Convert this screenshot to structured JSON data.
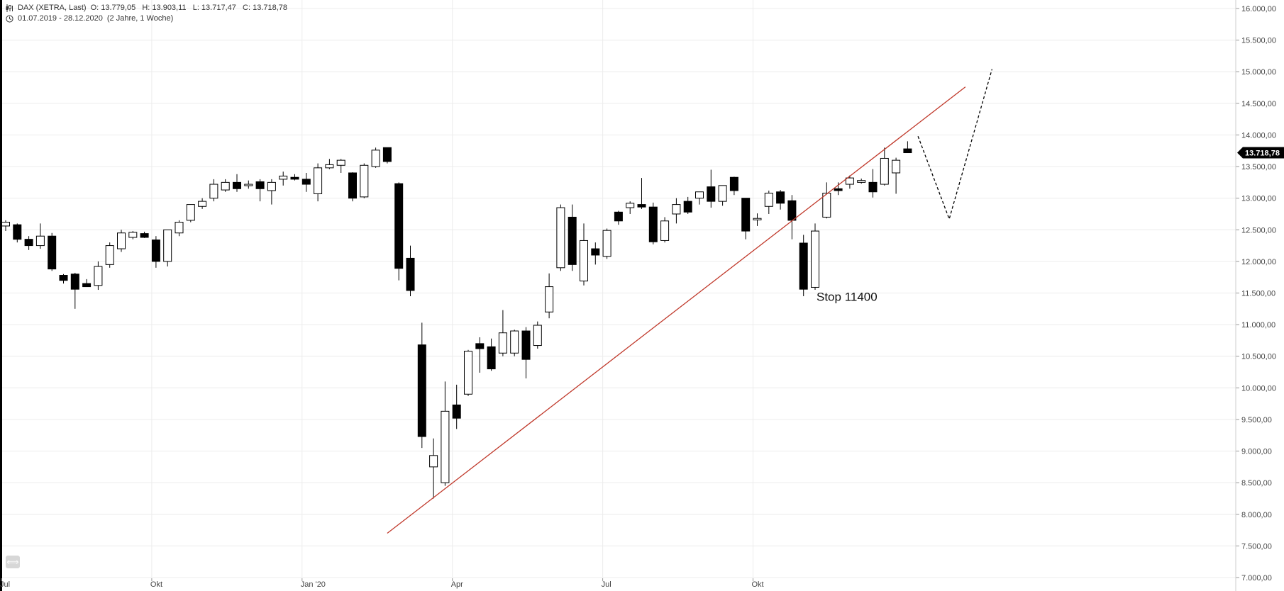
{
  "header": {
    "symbol": "DAX (XETRA, Last)",
    "ohlc": "O: 13.779,05   H: 13.903,11   L: 13.717,47   C: 13.718,78",
    "range": "01.07.2019 - 28.12.2020",
    "period": "(2 Jahre, 1 Woche)",
    "symbol_icon": "candlestick-icon",
    "range_icon": "clock-icon"
  },
  "colors": {
    "up_fill": "#ffffff",
    "down_fill": "#000000",
    "wick": "#000000",
    "trendline": "#c0392b",
    "projection": "#000000",
    "grid": "#ececec",
    "last_label_bg": "#000000"
  },
  "chart_data": {
    "type": "candlestick",
    "instrument": "DAX (XETRA, Last)",
    "interval": "weekly",
    "ylim": [
      7000,
      16000
    ],
    "yticks": [
      7000,
      7500,
      8000,
      8500,
      9000,
      9500,
      10000,
      10500,
      11000,
      11500,
      12000,
      12500,
      13000,
      13500,
      14000,
      14500,
      15000,
      15500,
      16000
    ],
    "ytick_labels": [
      "7.000,00",
      "7.500,00",
      "8.000,00",
      "8.500,00",
      "9.000,00",
      "9.500,00",
      "10.000,00",
      "10.500,00",
      "11.000,00",
      "11.500,00",
      "12.000,00",
      "12.500,00",
      "13.000,00",
      "13.500,00",
      "14.000,00",
      "14.500,00",
      "15.000,00",
      "15.500,00",
      "16.000,00"
    ],
    "xlim_weeks": [
      0,
      86
    ],
    "xticks": [
      {
        "label": "Jul",
        "week": 0
      },
      {
        "label": "Okt",
        "week": 13
      },
      {
        "label": "Jan '20",
        "week": 26
      },
      {
        "label": "Apr",
        "week": 39
      },
      {
        "label": "Jul",
        "week": 52
      },
      {
        "label": "Okt",
        "week": 65
      }
    ],
    "candles": [
      {
        "week": 0,
        "o": 12560,
        "h": 12650,
        "l": 12480,
        "c": 12620
      },
      {
        "week": 1,
        "o": 12580,
        "h": 12600,
        "l": 12300,
        "c": 12350
      },
      {
        "week": 2,
        "o": 12350,
        "h": 12400,
        "l": 12180,
        "c": 12250
      },
      {
        "week": 3,
        "o": 12250,
        "h": 12600,
        "l": 12200,
        "c": 12400
      },
      {
        "week": 4,
        "o": 12400,
        "h": 12450,
        "l": 11850,
        "c": 11880
      },
      {
        "week": 5,
        "o": 11780,
        "h": 11800,
        "l": 11650,
        "c": 11700
      },
      {
        "week": 6,
        "o": 11800,
        "h": 11820,
        "l": 11250,
        "c": 11560
      },
      {
        "week": 7,
        "o": 11650,
        "h": 11720,
        "l": 11600,
        "c": 11600
      },
      {
        "week": 8,
        "o": 11620,
        "h": 12000,
        "l": 11550,
        "c": 11920
      },
      {
        "week": 9,
        "o": 11950,
        "h": 12300,
        "l": 11900,
        "c": 12250
      },
      {
        "week": 10,
        "o": 12200,
        "h": 12500,
        "l": 12150,
        "c": 12450
      },
      {
        "week": 11,
        "o": 12380,
        "h": 12480,
        "l": 12350,
        "c": 12460
      },
      {
        "week": 12,
        "o": 12440,
        "h": 12470,
        "l": 12370,
        "c": 12380
      },
      {
        "week": 13,
        "o": 12340,
        "h": 12400,
        "l": 11900,
        "c": 12000
      },
      {
        "week": 14,
        "o": 12000,
        "h": 12500,
        "l": 11920,
        "c": 12500
      },
      {
        "week": 15,
        "o": 12450,
        "h": 12650,
        "l": 12400,
        "c": 12620
      },
      {
        "week": 16,
        "o": 12650,
        "h": 12900,
        "l": 12620,
        "c": 12900
      },
      {
        "week": 17,
        "o": 12870,
        "h": 13000,
        "l": 12830,
        "c": 12950
      },
      {
        "week": 18,
        "o": 13000,
        "h": 13300,
        "l": 12950,
        "c": 13220
      },
      {
        "week": 19,
        "o": 13130,
        "h": 13300,
        "l": 13100,
        "c": 13250
      },
      {
        "week": 20,
        "o": 13250,
        "h": 13380,
        "l": 13100,
        "c": 13150
      },
      {
        "week": 21,
        "o": 13200,
        "h": 13280,
        "l": 13150,
        "c": 13220
      },
      {
        "week": 22,
        "o": 13260,
        "h": 13300,
        "l": 12950,
        "c": 13150
      },
      {
        "week": 23,
        "o": 13120,
        "h": 13300,
        "l": 12900,
        "c": 13250
      },
      {
        "week": 24,
        "o": 13300,
        "h": 13420,
        "l": 13200,
        "c": 13350
      },
      {
        "week": 25,
        "o": 13330,
        "h": 13380,
        "l": 13280,
        "c": 13300
      },
      {
        "week": 26,
        "o": 13300,
        "h": 13400,
        "l": 13100,
        "c": 13220
      },
      {
        "week": 27,
        "o": 13070,
        "h": 13550,
        "l": 12950,
        "c": 13480
      },
      {
        "week": 28,
        "o": 13480,
        "h": 13620,
        "l": 13460,
        "c": 13530
      },
      {
        "week": 29,
        "o": 13520,
        "h": 13620,
        "l": 13400,
        "c": 13600
      },
      {
        "week": 30,
        "o": 13400,
        "h": 13410,
        "l": 12950,
        "c": 13000
      },
      {
        "week": 31,
        "o": 13020,
        "h": 13550,
        "l": 13000,
        "c": 13520
      },
      {
        "week": 32,
        "o": 13500,
        "h": 13800,
        "l": 13480,
        "c": 13760
      },
      {
        "week": 33,
        "o": 13800,
        "h": 13800,
        "l": 13550,
        "c": 13580
      },
      {
        "week": 34,
        "o": 13230,
        "h": 13250,
        "l": 11700,
        "c": 11890
      },
      {
        "week": 35,
        "o": 12050,
        "h": 12250,
        "l": 11450,
        "c": 11540
      },
      {
        "week": 36,
        "o": 10680,
        "h": 11030,
        "l": 9050,
        "c": 9230
      },
      {
        "week": 37,
        "o": 8750,
        "h": 9200,
        "l": 8250,
        "c": 8930
      },
      {
        "week": 38,
        "o": 8500,
        "h": 10100,
        "l": 8450,
        "c": 9630
      },
      {
        "week": 39,
        "o": 9730,
        "h": 10050,
        "l": 9350,
        "c": 9520
      },
      {
        "week": 40,
        "o": 9900,
        "h": 10600,
        "l": 9870,
        "c": 10580
      },
      {
        "week": 41,
        "o": 10700,
        "h": 10800,
        "l": 10240,
        "c": 10620
      },
      {
        "week": 42,
        "o": 10650,
        "h": 10780,
        "l": 10270,
        "c": 10300
      },
      {
        "week": 43,
        "o": 10550,
        "h": 11230,
        "l": 10500,
        "c": 10870
      },
      {
        "week": 44,
        "o": 10550,
        "h": 10920,
        "l": 10500,
        "c": 10900
      },
      {
        "week": 45,
        "o": 10900,
        "h": 10960,
        "l": 10150,
        "c": 10450
      },
      {
        "week": 46,
        "o": 10670,
        "h": 11050,
        "l": 10620,
        "c": 10990
      },
      {
        "week": 47,
        "o": 11200,
        "h": 11810,
        "l": 11100,
        "c": 11600
      },
      {
        "week": 48,
        "o": 11900,
        "h": 12900,
        "l": 11850,
        "c": 12850
      },
      {
        "week": 49,
        "o": 12700,
        "h": 12900,
        "l": 11850,
        "c": 11950
      },
      {
        "week": 50,
        "o": 11690,
        "h": 12600,
        "l": 11620,
        "c": 12330
      },
      {
        "week": 51,
        "o": 12200,
        "h": 12300,
        "l": 11950,
        "c": 12100
      },
      {
        "week": 52,
        "o": 12080,
        "h": 12520,
        "l": 12040,
        "c": 12490
      },
      {
        "week": 53,
        "o": 12780,
        "h": 12800,
        "l": 12580,
        "c": 12640
      },
      {
        "week": 54,
        "o": 12850,
        "h": 12950,
        "l": 12750,
        "c": 12920
      },
      {
        "week": 55,
        "o": 12900,
        "h": 13320,
        "l": 12830,
        "c": 12860
      },
      {
        "week": 56,
        "o": 12860,
        "h": 12930,
        "l": 12270,
        "c": 12310
      },
      {
        "week": 57,
        "o": 12330,
        "h": 12700,
        "l": 12300,
        "c": 12640
      },
      {
        "week": 58,
        "o": 12750,
        "h": 13000,
        "l": 12600,
        "c": 12900
      },
      {
        "week": 59,
        "o": 12950,
        "h": 13020,
        "l": 12750,
        "c": 12780
      },
      {
        "week": 60,
        "o": 13000,
        "h": 13100,
        "l": 12900,
        "c": 13100
      },
      {
        "week": 61,
        "o": 13180,
        "h": 13450,
        "l": 12850,
        "c": 12950
      },
      {
        "week": 62,
        "o": 12950,
        "h": 13200,
        "l": 12880,
        "c": 13200
      },
      {
        "week": 63,
        "o": 13330,
        "h": 13340,
        "l": 13050,
        "c": 13120
      },
      {
        "week": 64,
        "o": 13000,
        "h": 13000,
        "l": 12350,
        "c": 12480
      },
      {
        "week": 65,
        "o": 12680,
        "h": 12760,
        "l": 12560,
        "c": 12680
      },
      {
        "week": 66,
        "o": 12870,
        "h": 13120,
        "l": 12750,
        "c": 13080
      },
      {
        "week": 67,
        "o": 13100,
        "h": 13130,
        "l": 12820,
        "c": 12920
      },
      {
        "week": 68,
        "o": 12960,
        "h": 13050,
        "l": 12350,
        "c": 12650
      },
      {
        "week": 69,
        "o": 12290,
        "h": 12420,
        "l": 11450,
        "c": 11560
      },
      {
        "week": 70,
        "o": 11590,
        "h": 12600,
        "l": 11550,
        "c": 12480
      },
      {
        "week": 71,
        "o": 12700,
        "h": 13250,
        "l": 12680,
        "c": 13080
      },
      {
        "week": 72,
        "o": 13150,
        "h": 13250,
        "l": 13050,
        "c": 13120
      },
      {
        "week": 73,
        "o": 13220,
        "h": 13360,
        "l": 13150,
        "c": 13320
      },
      {
        "week": 74,
        "o": 13250,
        "h": 13310,
        "l": 13230,
        "c": 13280
      },
      {
        "week": 75,
        "o": 13250,
        "h": 13460,
        "l": 13010,
        "c": 13100
      },
      {
        "week": 76,
        "o": 13220,
        "h": 13800,
        "l": 13200,
        "c": 13630
      },
      {
        "week": 77,
        "o": 13400,
        "h": 13640,
        "l": 13070,
        "c": 13600
      },
      {
        "week": 78,
        "o": 13780,
        "h": 13900,
        "l": 13717,
        "c": 13719
      }
    ],
    "last_close_label": "13.718,78",
    "last_close": 13718.78,
    "trendline": [
      {
        "week": 33,
        "y": 7700
      },
      {
        "week": 83,
        "y": 14760
      }
    ],
    "projection": [
      {
        "week": 78.9,
        "y": 13980
      },
      {
        "week": 81.6,
        "y": 12670
      },
      {
        "week": 85.3,
        "y": 15040
      }
    ],
    "annotation": {
      "text": "Stop 11400",
      "week": 70,
      "y": 11400
    }
  },
  "ui": {
    "collapse_icon": "collapse-arrows-icon",
    "collapse_glyph": "⟺"
  }
}
